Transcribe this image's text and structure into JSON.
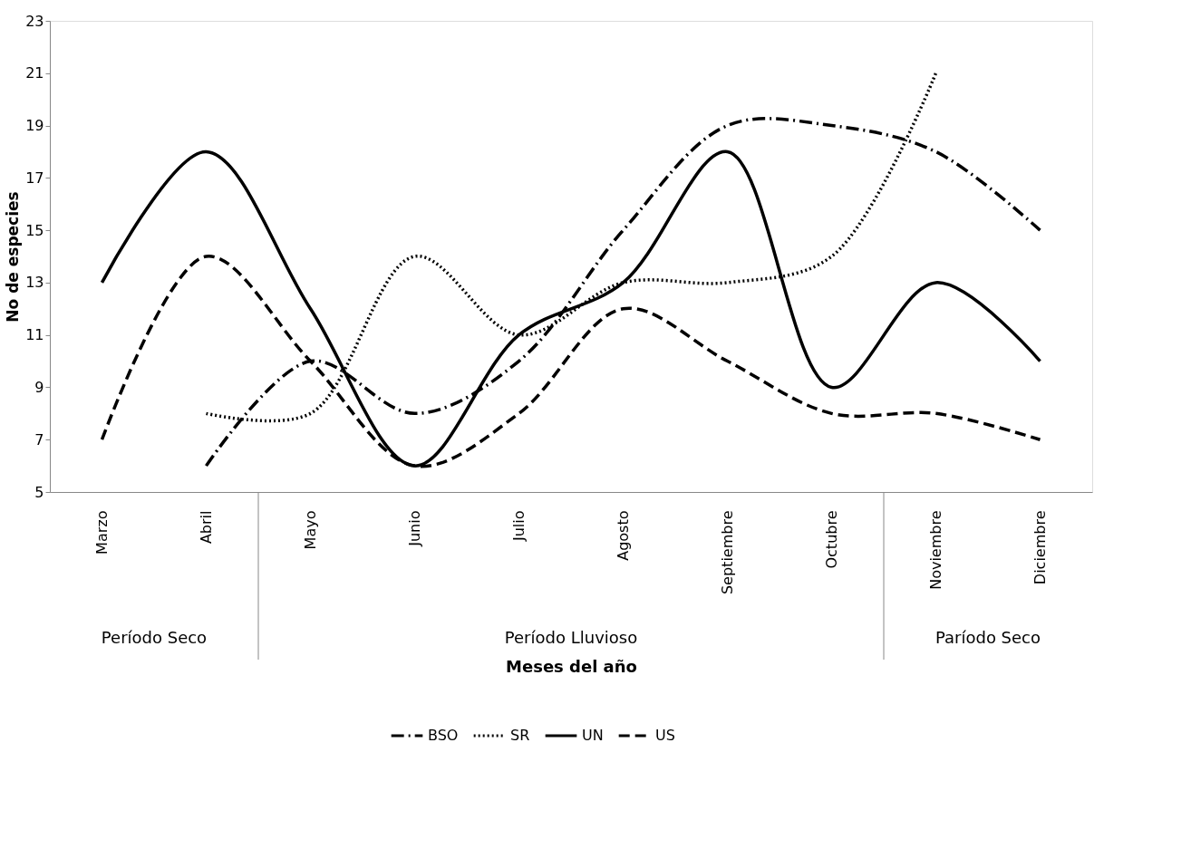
{
  "chart_data": {
    "type": "line",
    "xlabel": "Meses del año",
    "ylabel": "No de especies",
    "categories": [
      "Marzo",
      "Abril",
      "Mayo",
      "Junio",
      "Julio",
      "Agosto",
      "Septiembre",
      "Octubre",
      "Noviembre",
      "Diciembre"
    ],
    "series": [
      {
        "name": "BSO",
        "color": "#000000",
        "line_style": "dashdot",
        "values": [
          null,
          6,
          10,
          8,
          10,
          15,
          19,
          19,
          18,
          15
        ]
      },
      {
        "name": "SR",
        "color": "#000000",
        "line_style": "dotted",
        "values": [
          null,
          8,
          8,
          14,
          11,
          13,
          13,
          14,
          21,
          null
        ]
      },
      {
        "name": "UN",
        "color": "#000000",
        "line_style": "solid",
        "values": [
          13,
          18,
          12,
          6,
          11,
          13,
          18,
          9,
          13,
          10
        ]
      },
      {
        "name": "US",
        "color": "#000000",
        "line_style": "dashed",
        "values": [
          7,
          14,
          10,
          6,
          8,
          12,
          10,
          8,
          8,
          7
        ]
      }
    ],
    "ylim": [
      5,
      23
    ],
    "yticks": [
      5,
      7,
      9,
      11,
      13,
      15,
      17,
      19,
      21,
      23
    ],
    "grid": false,
    "legend": "bottom",
    "marker": "none",
    "annotations": [
      "Período Seco",
      "Período Lluvioso",
      "Paríodo Seco"
    ]
  }
}
